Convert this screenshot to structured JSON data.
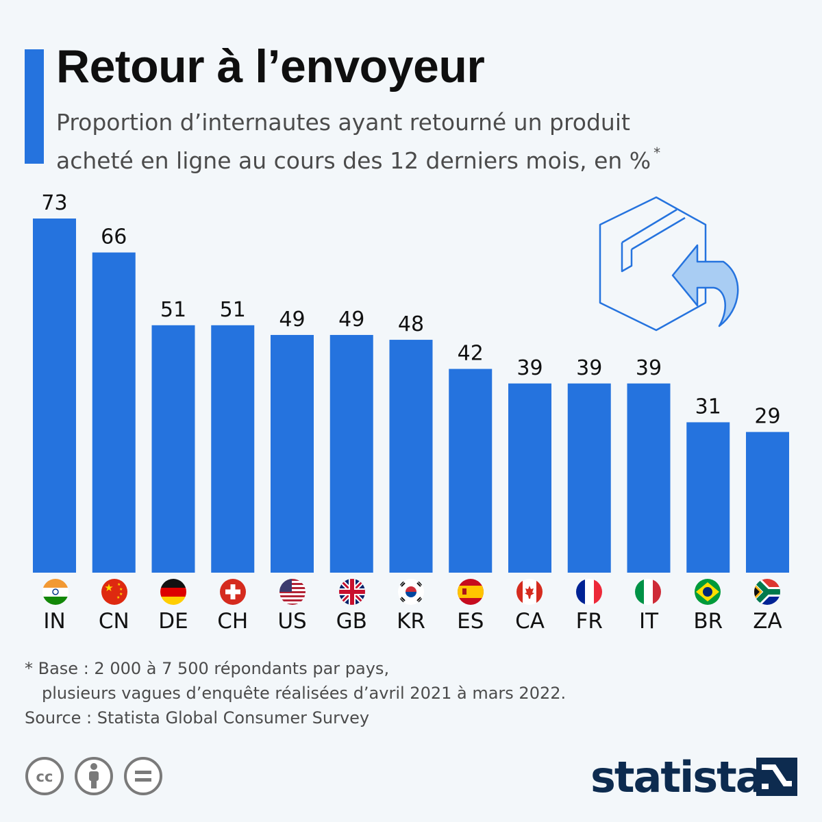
{
  "title": "Retour à l’envoyeur",
  "subtitle_line1": "Proportion d’internautes ayant retourné un produit",
  "subtitle_line2": "acheté en ligne au cours des 12 derniers mois, en %",
  "subtitle_mark": "*",
  "footnote_line1": "* Base : 2 000 à 7 500 répondants par pays,",
  "footnote_line2": "plusieurs vagues d’enquête réalisées d’avril 2021 à mars 2022.",
  "source": "Source : Statista Global Consumer Survey",
  "brand": "statista",
  "colors": {
    "bar": "#2573de",
    "background": "#f3f7fa",
    "brand": "#0d2b4f"
  },
  "icons": [
    "returned-package-icon",
    "creative-commons-icon",
    "attribution-icon",
    "no-derivatives-icon",
    "statista-logo-icon"
  ],
  "chart_data": {
    "type": "bar",
    "categories": [
      "IN",
      "CN",
      "DE",
      "CH",
      "US",
      "GB",
      "KR",
      "ES",
      "CA",
      "FR",
      "IT",
      "BR",
      "ZA"
    ],
    "values": [
      73,
      66,
      51,
      51,
      49,
      49,
      48,
      42,
      39,
      39,
      39,
      31,
      29
    ],
    "flags": [
      "india-flag-icon",
      "china-flag-icon",
      "germany-flag-icon",
      "switzerland-flag-icon",
      "usa-flag-icon",
      "uk-flag-icon",
      "south-korea-flag-icon",
      "spain-flag-icon",
      "canada-flag-icon",
      "france-flag-icon",
      "italy-flag-icon",
      "brazil-flag-icon",
      "south-africa-flag-icon"
    ],
    "ylim": [
      0,
      73
    ],
    "grid": false,
    "legend": "none"
  }
}
